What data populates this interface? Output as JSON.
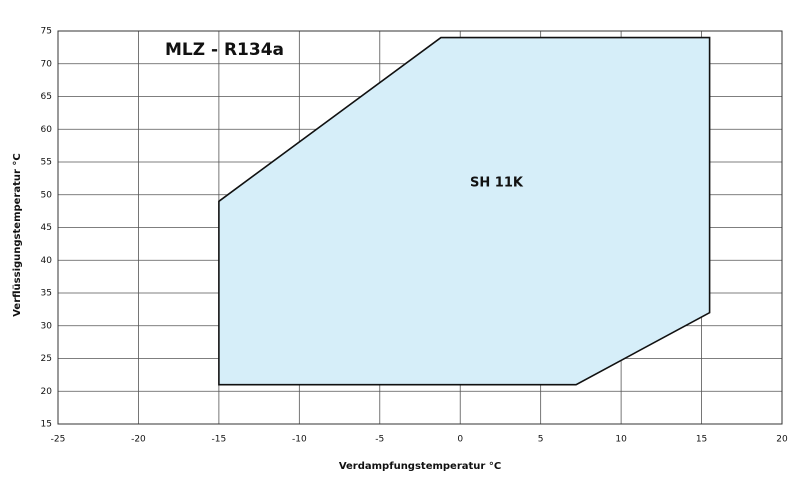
{
  "chart_data": {
    "type": "polygon",
    "title": "MLZ - R134a",
    "annotations": [
      "SH 11K"
    ],
    "x_label": "Verdampfungstemperatur °C",
    "y_label": "Verflüssigungstemperatur °C",
    "x": [
      -15,
      -1.2,
      15.5,
      15.5,
      7.2,
      -15
    ],
    "values": [
      49,
      74,
      74,
      32,
      21,
      21
    ],
    "color": "#d6eef9",
    "xlim": [
      -25,
      20
    ],
    "xticks": [
      -25,
      -20,
      -15,
      -10,
      -5,
      0,
      5,
      10,
      15,
      20
    ],
    "ylim": [
      15,
      75
    ],
    "yticks": [
      15,
      20,
      25,
      30,
      35,
      40,
      45,
      50,
      55,
      60,
      65,
      70,
      75
    ],
    "grid": true
  }
}
